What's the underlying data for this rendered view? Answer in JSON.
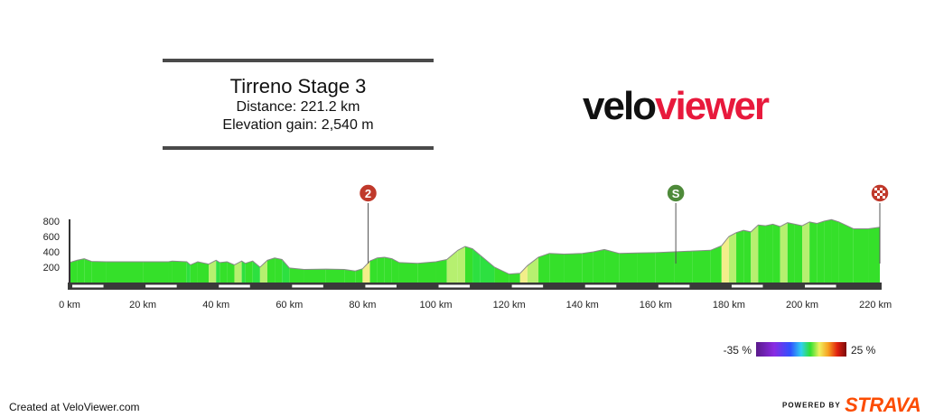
{
  "header": {
    "title": "Tirreno Stage 3",
    "distance_line": "Distance: 221.2 km",
    "elevation_line": "Elevation gain: 2,540 m"
  },
  "logo": {
    "part1": "velo",
    "part2": "viewer"
  },
  "footer": {
    "created": "Created at VeloViewer.com",
    "powered_by": "POWERED BY",
    "strava": "STRAVA"
  },
  "markers": [
    {
      "label": "2",
      "km": 81.5,
      "color": "#c0392b",
      "kind": "climb"
    },
    {
      "label": "S",
      "km": 165.5,
      "color": "#4e8a3a",
      "kind": "sprint"
    },
    {
      "label": "finish",
      "km": 221.2,
      "color": "#c0392b",
      "kind": "finish"
    }
  ],
  "gradient_legend": {
    "min_label": "-35 %",
    "max_label": "25 %"
  },
  "chart_data": {
    "type": "area",
    "title": "Tirreno Stage 3",
    "xlabel": "",
    "ylabel": "",
    "x_ticks": [
      "0 km",
      "20 km",
      "40 km",
      "60 km",
      "80 km",
      "100 km",
      "120 km",
      "140 km",
      "160 km",
      "180 km",
      "200 km",
      "220 km"
    ],
    "y_ticks": [
      "200",
      "400",
      "600",
      "800"
    ],
    "xlim": [
      0,
      221.2
    ],
    "ylim": [
      0,
      800
    ],
    "series": [
      {
        "x": [
          0,
          2,
          4,
          6,
          10,
          20,
          27,
          28,
          32,
          33,
          35,
          38,
          40,
          41,
          43,
          45,
          47,
          48,
          50,
          52,
          54,
          56,
          58,
          60,
          64,
          70,
          75,
          78,
          80,
          82,
          84,
          86,
          88,
          90,
          95,
          100,
          103,
          106,
          108,
          110,
          112,
          116,
          120,
          123,
          125,
          128,
          131,
          135,
          140,
          143,
          146,
          150,
          155,
          160,
          165,
          170,
          175,
          178,
          180,
          182,
          184,
          186,
          188,
          190,
          192,
          194,
          196,
          198,
          200,
          202,
          204,
          206,
          208,
          210,
          214,
          218,
          221.2
        ],
        "y": [
          260,
          290,
          310,
          275,
          270,
          270,
          270,
          280,
          270,
          230,
          270,
          240,
          290,
          260,
          270,
          230,
          280,
          250,
          280,
          200,
          290,
          320,
          300,
          190,
          170,
          175,
          170,
          150,
          180,
          280,
          320,
          330,
          310,
          260,
          250,
          270,
          300,
          420,
          470,
          440,
          360,
          200,
          110,
          120,
          220,
          330,
          380,
          370,
          380,
          400,
          430,
          380,
          385,
          390,
          400,
          410,
          420,
          480,
          600,
          650,
          680,
          660,
          750,
          740,
          760,
          730,
          780,
          760,
          740,
          790,
          770,
          800,
          820,
          790,
          700,
          700,
          720
        ]
      }
    ]
  }
}
